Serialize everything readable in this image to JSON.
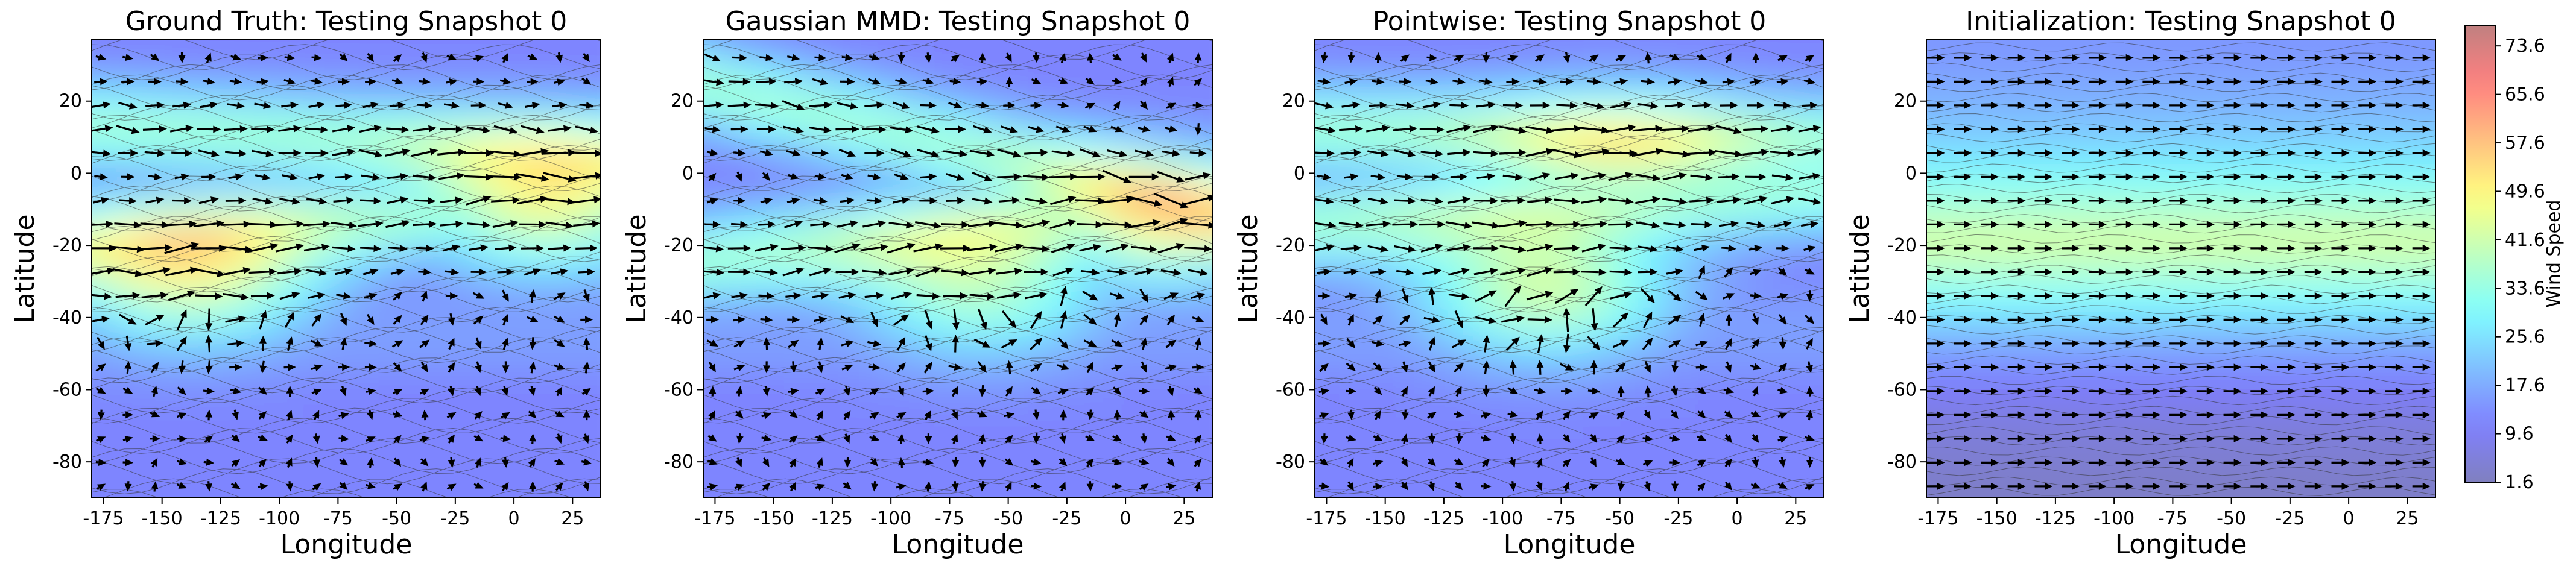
{
  "chart_data": [
    {
      "type": "heatmap",
      "title": "Ground Truth: Testing Snapshot 0",
      "xlabel": "Longitude",
      "ylabel": "Latitude",
      "xlim": [
        -180,
        37
      ],
      "ylim": [
        -90,
        37
      ],
      "xticks": [
        -175,
        -150,
        -125,
        -100,
        -75,
        -50,
        -25,
        0,
        25
      ],
      "yticks": [
        20,
        0,
        -20,
        -40,
        -60,
        -80
      ],
      "overlay": "wind vectors (quiver) and streamlines",
      "jets": [
        {
          "lon_start": -180,
          "lat_start": -20,
          "lon_end": 37,
          "lat_end": -8,
          "peak_lon": -135,
          "peak_lat": -30,
          "peak_speed": 60
        },
        {
          "lon_start": -110,
          "lat_start": 10,
          "lon_end": 37,
          "lat_end": 5,
          "peak_lon": 15,
          "peak_lat": -10,
          "peak_speed": 62
        }
      ]
    },
    {
      "type": "heatmap",
      "title": "Gaussian MMD: Testing Snapshot 0",
      "xlabel": "Longitude",
      "ylabel": "Latitude",
      "xlim": [
        -180,
        37
      ],
      "ylim": [
        -90,
        37
      ],
      "xticks": [
        -175,
        -150,
        -125,
        -100,
        -75,
        -50,
        -25,
        0,
        25
      ],
      "yticks": [
        20,
        0,
        -20,
        -40,
        -60,
        -80
      ],
      "overlay": "wind vectors (quiver) and streamlines",
      "jets": [
        {
          "lon_start": -180,
          "lat_start": -25,
          "lon_end": 37,
          "lat_end": -8,
          "peak_lon": -60,
          "peak_lat": -33,
          "peak_speed": 55
        },
        {
          "lon_start": -60,
          "lat_start": 5,
          "lon_end": 37,
          "lat_end": -10,
          "peak_lon": 15,
          "peak_lat": -15,
          "peak_speed": 58
        }
      ]
    },
    {
      "type": "heatmap",
      "title": "Pointwise: Testing Snapshot 0",
      "xlabel": "Longitude",
      "ylabel": "Latitude",
      "xlim": [
        -180,
        37
      ],
      "ylim": [
        -90,
        37
      ],
      "xticks": [
        -175,
        -150,
        -125,
        -100,
        -75,
        -50,
        -25,
        0,
        25
      ],
      "yticks": [
        20,
        0,
        -20,
        -40,
        -60,
        -80
      ],
      "overlay": "wind vectors (quiver) and streamlines",
      "jets": [
        {
          "lon_start": -180,
          "lat_start": -15,
          "lon_end": 37,
          "lat_end": -5,
          "peak_lon": -80,
          "peak_lat": -33,
          "peak_speed": 60
        },
        {
          "lon_start": -90,
          "lat_start": 10,
          "lon_end": 37,
          "lat_end": 8,
          "peak_lon": -50,
          "peak_lat": 3,
          "peak_speed": 48
        }
      ]
    },
    {
      "type": "heatmap",
      "title": "Initialization: Testing Snapshot 0",
      "xlabel": "Longitude",
      "ylabel": "Latitude",
      "xlim": [
        -180,
        37
      ],
      "ylim": [
        -90,
        37
      ],
      "xticks": [
        -175,
        -150,
        -125,
        -100,
        -75,
        -50,
        -25,
        0,
        25
      ],
      "yticks": [
        20,
        0,
        -20,
        -40,
        -60,
        -80
      ],
      "overlay": "zonal wind vectors (quiver) and streamlines",
      "zonal_profile": [
        {
          "lat": 30,
          "speed": 15
        },
        {
          "lat": 10,
          "speed": 22
        },
        {
          "lat": -5,
          "speed": 32
        },
        {
          "lat": -20,
          "speed": 44
        },
        {
          "lat": -35,
          "speed": 30
        },
        {
          "lat": -50,
          "speed": 15
        },
        {
          "lat": -70,
          "speed": 6
        },
        {
          "lat": -88,
          "speed": 3
        }
      ]
    }
  ],
  "colorbar": {
    "label": "Wind Speed",
    "min": 1.6,
    "max": 77.0,
    "ticks": [
      "73.6",
      "65.6",
      "57.6",
      "49.6",
      "41.6",
      "33.6",
      "25.6",
      "17.6",
      "9.6",
      "1.6"
    ],
    "colormap": "jet (alpha 0.5)"
  },
  "colors": {
    "arrow": "#000000",
    "streamline": "#333333"
  }
}
